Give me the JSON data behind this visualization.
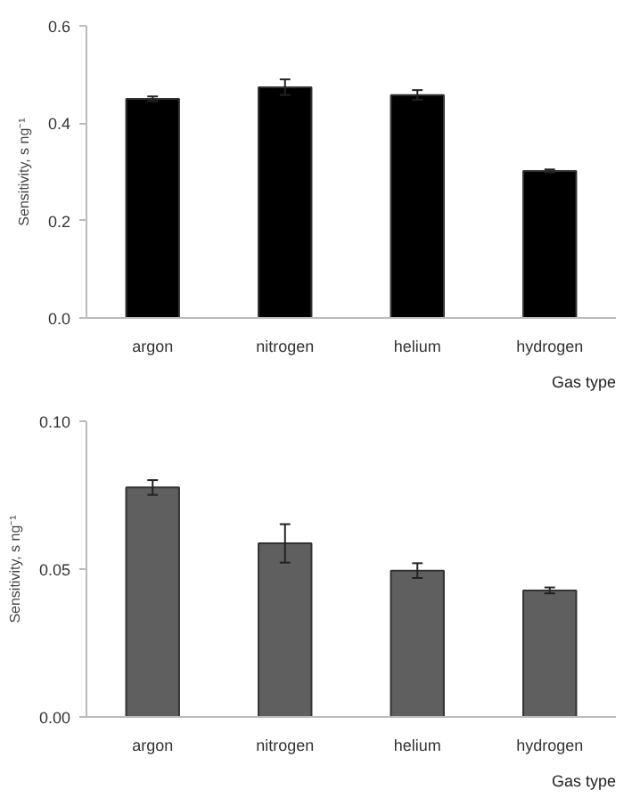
{
  "chart_data": [
    {
      "type": "bar",
      "xlabel": "Gas type",
      "ylabel": "Sensitivity, s ng⁻¹",
      "categories": [
        "argon",
        "nitrogen",
        "helium",
        "hydrogen"
      ],
      "values": [
        0.45,
        0.474,
        0.458,
        0.302
      ],
      "errors": [
        0.005,
        0.016,
        0.01,
        0.003
      ],
      "color": "#000000",
      "ylim": [
        0,
        0.6
      ],
      "yticks": [
        {
          "value": 0,
          "label": "0.0"
        },
        {
          "value": 0.2,
          "label": "0.2"
        },
        {
          "value": 0.4,
          "label": "0.4"
        },
        {
          "value": 0.6,
          "label": "0.6"
        }
      ],
      "grid": false
    },
    {
      "type": "bar",
      "xlabel": "Gas type",
      "ylabel": "Sensitivity, s ng⁻¹",
      "categories": [
        "argon",
        "nitrogen",
        "helium",
        "hydrogen"
      ],
      "values": [
        0.0776,
        0.0587,
        0.0495,
        0.0428
      ],
      "errors": [
        0.0025,
        0.0065,
        0.0025,
        0.001
      ],
      "color": "#5f5f5f",
      "ylim": [
        0,
        0.1
      ],
      "yticks": [
        {
          "value": 0,
          "label": "0.00"
        },
        {
          "value": 0.05,
          "label": "0.05"
        },
        {
          "value": 0.1,
          "label": "0.10"
        }
      ],
      "grid": false
    }
  ]
}
